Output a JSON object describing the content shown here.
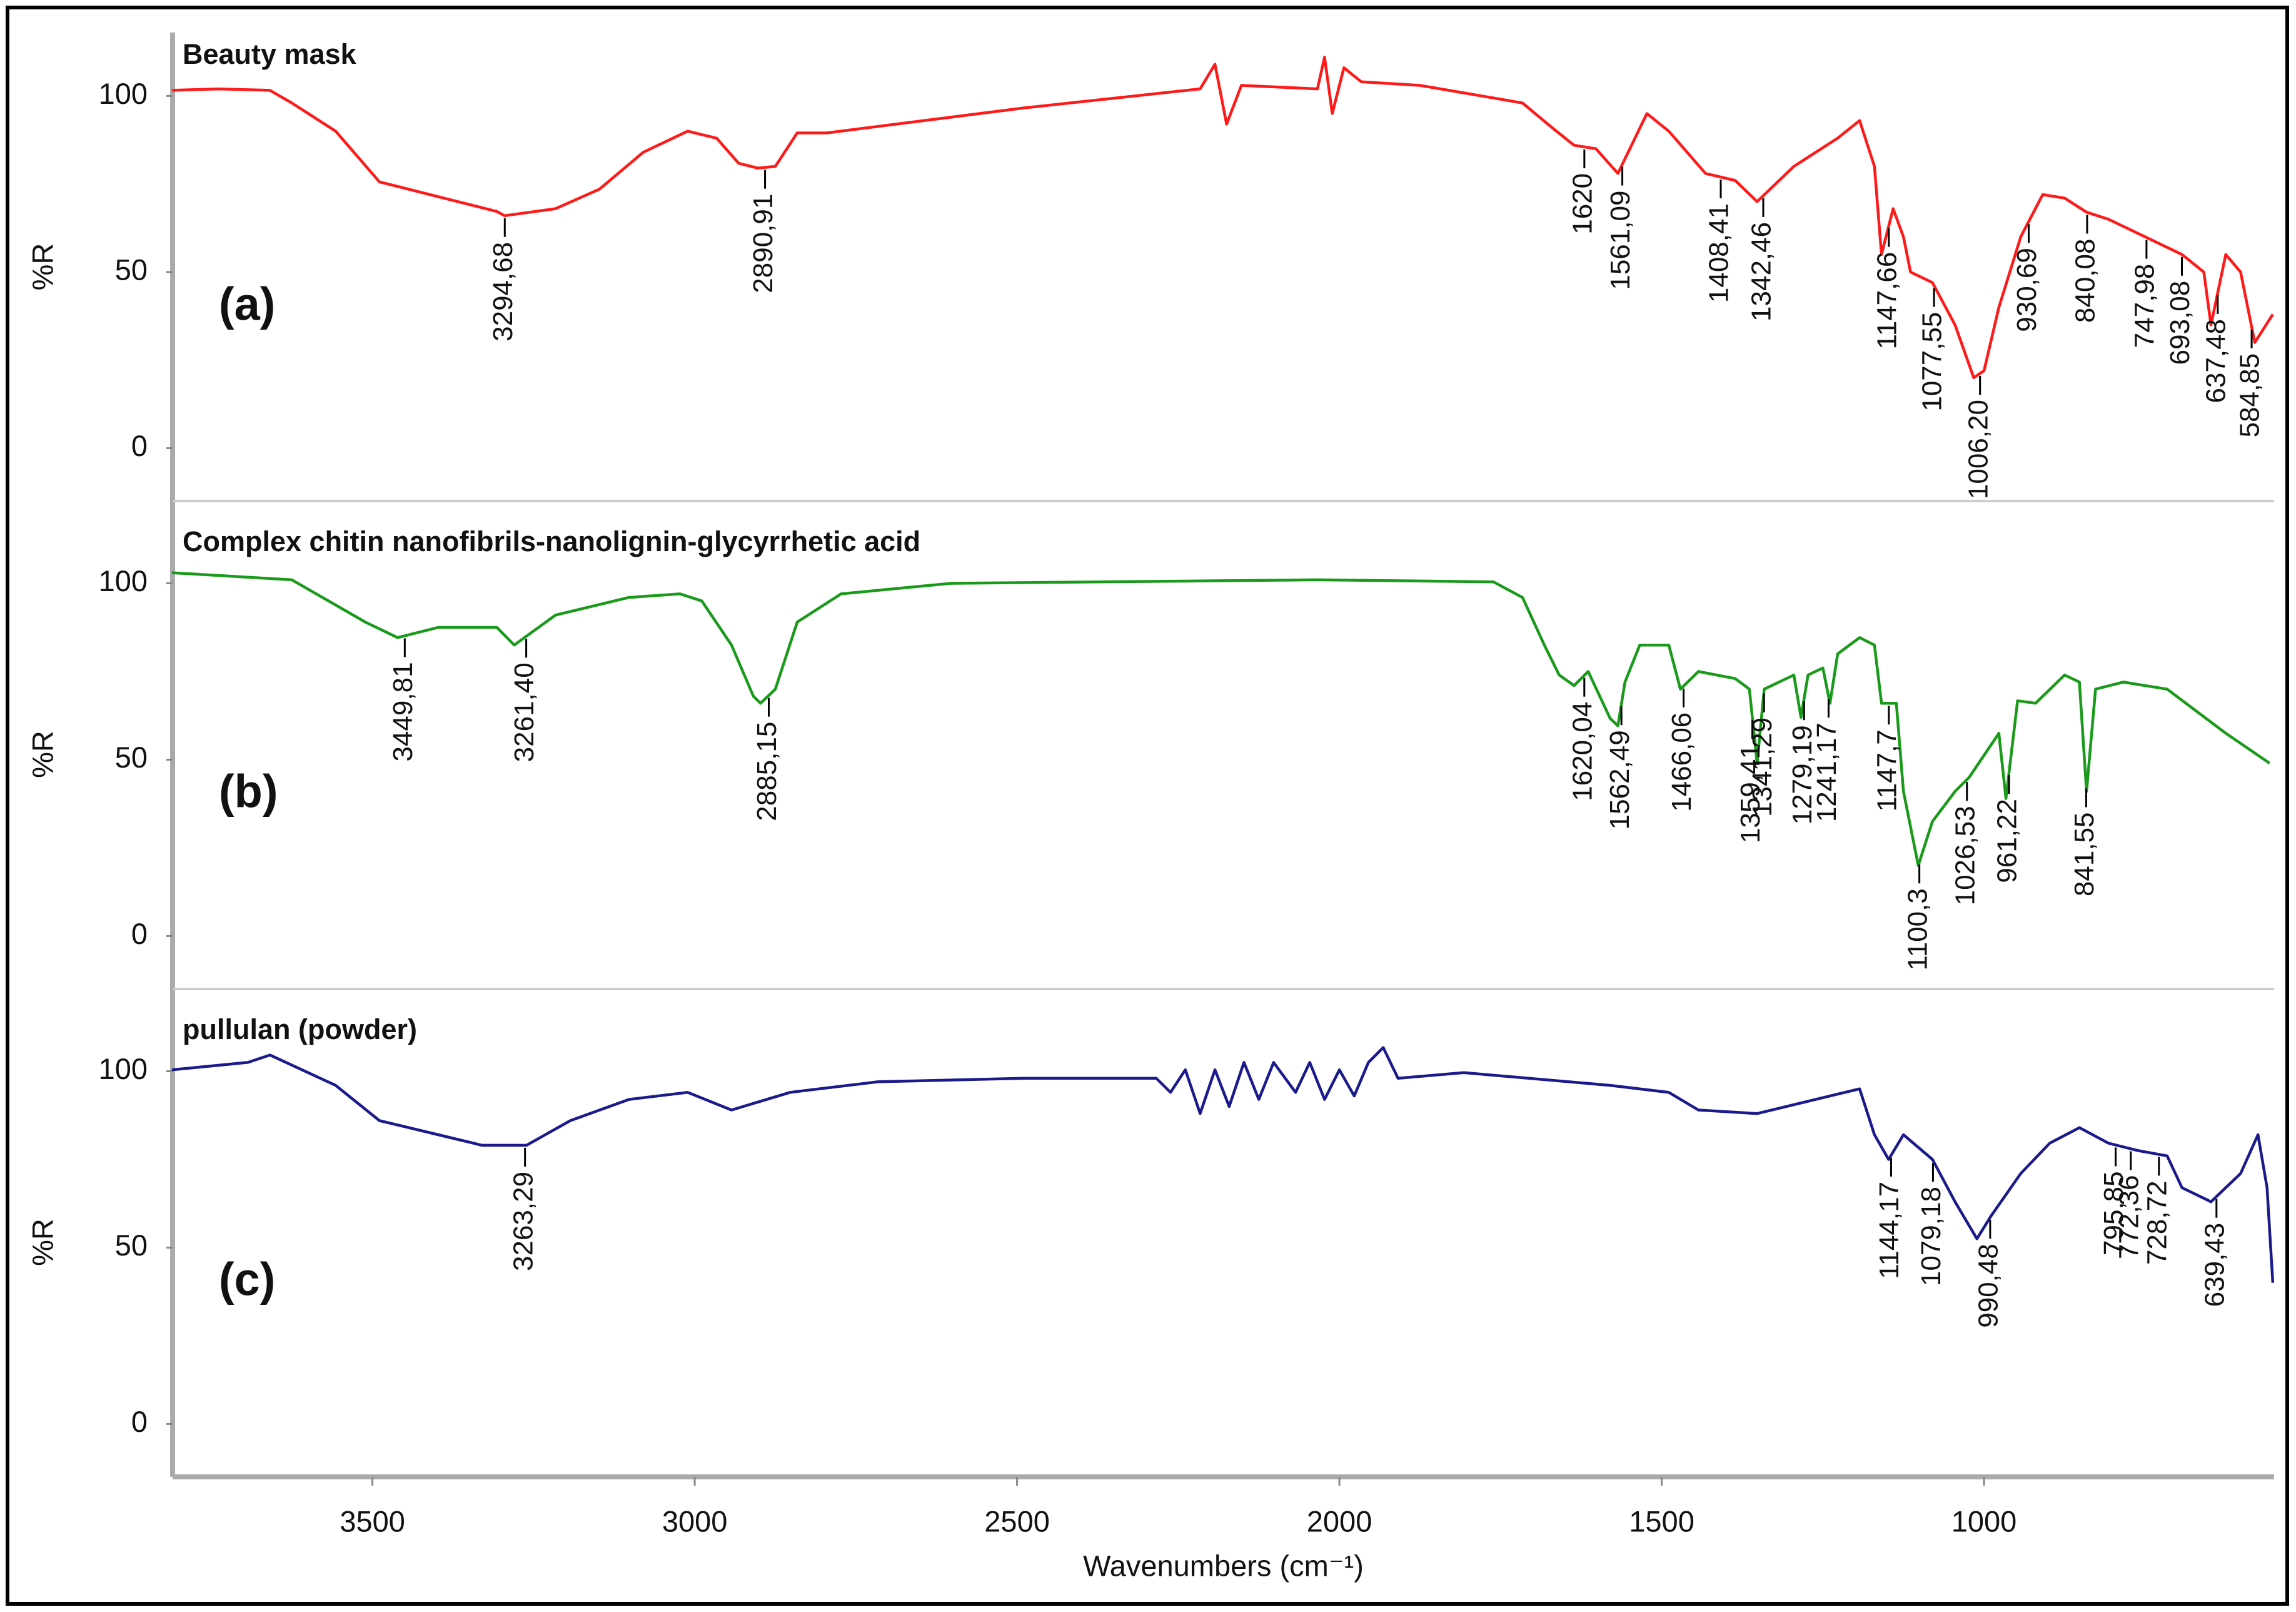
{
  "chart_data": [
    {
      "type": "line",
      "title": "Beauty mask",
      "panel_label": "(a)",
      "ylabel": "%R",
      "color": "#ff1a1a",
      "xlim": [
        3810,
        550
      ],
      "ylim": [
        -15,
        118
      ],
      "yticks": [
        0,
        50,
        100
      ],
      "x": [
        3811,
        3739,
        3659,
        3625,
        3557,
        3489,
        3398,
        3307,
        3295,
        3216,
        3148,
        3080,
        3011,
        2966,
        2932,
        2902,
        2875,
        2841,
        2795,
        2489,
        2216,
        2193,
        2175,
        2152,
        2034,
        2023,
        2011,
        1993,
        1966,
        1875,
        1716,
        1670,
        1636,
        1602,
        1568,
        1523,
        1489,
        1432,
        1386,
        1352,
        1295,
        1227,
        1193,
        1170,
        1159,
        1141,
        1125,
        1114,
        1080,
        1045,
        1016,
        1000,
        977,
        943,
        909,
        875,
        841,
        807,
        750,
        693,
        659,
        648,
        625,
        602,
        580,
        552
      ],
      "values": [
        101.6,
        102,
        101.6,
        98,
        90,
        75.6,
        71.4,
        67.2,
        66,
        68,
        73.5,
        84,
        90,
        88,
        80.9,
        79.5,
        80,
        89.5,
        89.5,
        96.6,
        102,
        109,
        92,
        103,
        102,
        111,
        95,
        108,
        104,
        103,
        98,
        91,
        86,
        85,
        78,
        95,
        90,
        78,
        76,
        70,
        80,
        88,
        93,
        80,
        55,
        68,
        60,
        50,
        47,
        35,
        20,
        22,
        40,
        60,
        72,
        71,
        67,
        65,
        60,
        55,
        50,
        35,
        55,
        50,
        30,
        38
      ],
      "annotations": [
        {
          "x": 3294.68,
          "label": "3294,68"
        },
        {
          "x": 2890.91,
          "label": "2890,91"
        },
        {
          "x": 1620,
          "label": "1620"
        },
        {
          "x": 1561.09,
          "label": "1561,09"
        },
        {
          "x": 1408.41,
          "label": "1408,41"
        },
        {
          "x": 1342.46,
          "label": "1342,46"
        },
        {
          "x": 1147.66,
          "label": "1147,66"
        },
        {
          "x": 1077.55,
          "label": "1077,55"
        },
        {
          "x": 1006.2,
          "label": "1006,20"
        },
        {
          "x": 930.69,
          "label": "930,69"
        },
        {
          "x": 840.08,
          "label": "840,08"
        },
        {
          "x": 747.98,
          "label": "747,98"
        },
        {
          "x": 693.08,
          "label": "693,08"
        },
        {
          "x": 637.48,
          "label": "637,48"
        },
        {
          "x": 584.85,
          "label": "584,85"
        }
      ]
    },
    {
      "type": "line",
      "title": "Complex chitin nanofibrils-nanolignin-glycyrrhetic  acid",
      "panel_label": "(b)",
      "ylabel": "%R",
      "color": "#1a9a1a",
      "xlim": [
        3810,
        550
      ],
      "ylim": [
        -15,
        118
      ],
      "yticks": [
        0,
        50,
        100
      ],
      "x": [
        3811,
        3625,
        3511,
        3461,
        3398,
        3307,
        3280,
        3216,
        3102,
        3023,
        2989,
        2943,
        2909,
        2898,
        2875,
        2841,
        2773,
        2602,
        2034,
        1761,
        1716,
        1682,
        1659,
        1636,
        1614,
        1580,
        1568,
        1557,
        1534,
        1489,
        1471,
        1443,
        1386,
        1364,
        1352,
        1341,
        1295,
        1284,
        1273,
        1250,
        1239,
        1227,
        1193,
        1170,
        1159,
        1136,
        1125,
        1102,
        1080,
        1045,
        1023,
        977,
        966,
        948,
        920,
        875,
        852,
        841,
        827,
        784,
        716,
        625,
        557
      ],
      "values": [
        103,
        101,
        89,
        84.6,
        87.5,
        87.5,
        82.5,
        91,
        96,
        97,
        95,
        82.5,
        68,
        66,
        70,
        89,
        97,
        100,
        101,
        100.4,
        96,
        82.5,
        74,
        71,
        75,
        61.7,
        59.6,
        72,
        82.5,
        82.5,
        70,
        75,
        73,
        70,
        49,
        70,
        74,
        62,
        74,
        76,
        66,
        80,
        84.6,
        82.5,
        66,
        66,
        41,
        20,
        32.5,
        41,
        45,
        57.5,
        39,
        66.7,
        66,
        74,
        72,
        41,
        70,
        72,
        70,
        57.5,
        49
      ],
      "annotations": [
        {
          "x": 3449.81,
          "label": "3449,81"
        },
        {
          "x": 3261.4,
          "label": "3261,40"
        },
        {
          "x": 2885.15,
          "label": "2885,15"
        },
        {
          "x": 1620.04,
          "label": "1620,04"
        },
        {
          "x": 1562.49,
          "label": "1562,49"
        },
        {
          "x": 1466.06,
          "label": "1466,06"
        },
        {
          "x": 1359.41,
          "label": "1359,41"
        },
        {
          "x": 1341.29,
          "label": "1341,29"
        },
        {
          "x": 1279.19,
          "label": "1279,19"
        },
        {
          "x": 1241.17,
          "label": "1241,17"
        },
        {
          "x": 1147.7,
          "label": "1147,7"
        },
        {
          "x": 1100.3,
          "label": "1100,3"
        },
        {
          "x": 1026.53,
          "label": "1026,53"
        },
        {
          "x": 961.22,
          "label": "961,22"
        },
        {
          "x": 841.55,
          "label": "841,55"
        }
      ]
    },
    {
      "type": "line",
      "title": "pullulan (powder)",
      "panel_label": "(c)",
      "ylabel": "%R",
      "color": "#1a1a8c",
      "xlim": [
        3810,
        550
      ],
      "ylim": [
        -15,
        118
      ],
      "yticks": [
        0,
        50,
        100
      ],
      "xticks": [
        3500,
        3000,
        2500,
        2000,
        1500,
        1000
      ],
      "xlabel": "Wavenumbers (cm⁻¹)",
      "x": [
        3811,
        3693,
        3659,
        3557,
        3489,
        3398,
        3330,
        3261,
        3193,
        3102,
        3011,
        2943,
        2852,
        2716,
        2489,
        2284,
        2262,
        2239,
        2216,
        2193,
        2171,
        2148,
        2125,
        2102,
        2068,
        2046,
        2023,
        2000,
        1977,
        1955,
        1932,
        1909,
        1807,
        1580,
        1489,
        1443,
        1352,
        1216,
        1193,
        1170,
        1148,
        1125,
        1080,
        1045,
        1011,
        989,
        943,
        898,
        852,
        807,
        761,
        716,
        693,
        648,
        602,
        575,
        561,
        552
      ],
      "values": [
        100.4,
        102.5,
        104.6,
        96,
        86,
        82,
        79,
        79,
        86,
        92,
        94,
        89,
        94,
        97,
        98,
        98,
        94,
        100.4,
        88,
        100.4,
        90,
        102.5,
        92,
        102.5,
        94,
        102.5,
        92,
        100.4,
        93,
        102.5,
        106.7,
        98,
        99.6,
        96,
        94,
        89,
        88,
        94,
        95,
        82,
        75,
        82,
        75,
        63,
        52.5,
        59,
        71,
        79.6,
        84,
        79.6,
        77.5,
        76,
        67,
        63,
        71,
        82,
        67,
        40
      ],
      "annotations": [
        {
          "x": 3263.29,
          "label": "3263,29"
        },
        {
          "x": 1144.17,
          "label": "1144,17"
        },
        {
          "x": 1079.18,
          "label": "1079,18"
        },
        {
          "x": 990.48,
          "label": "990,48"
        },
        {
          "x": 795.85,
          "label": "795,85"
        },
        {
          "x": 772.36,
          "label": "772,36"
        },
        {
          "x": 728.72,
          "label": "728,72"
        },
        {
          "x": 639.43,
          "label": "639,43"
        }
      ]
    }
  ]
}
